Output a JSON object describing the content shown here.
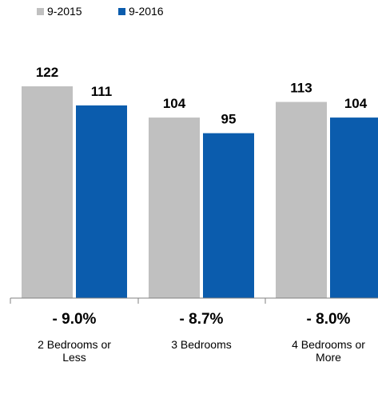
{
  "chart_data": {
    "type": "bar",
    "title": "",
    "xlabel": "",
    "ylabel": "",
    "ylim": [
      0,
      122
    ],
    "grid": false,
    "legend": "top-left",
    "categories": [
      [
        "2 Bedrooms or",
        "Less"
      ],
      [
        "3 Bedrooms"
      ],
      [
        "4 Bedrooms or",
        "More"
      ]
    ],
    "series": [
      {
        "name": "9-2015",
        "color": "#c0c0c0",
        "values": [
          122,
          104,
          113
        ]
      },
      {
        "name": "9-2016",
        "color": "#0b5cad",
        "values": [
          111,
          95,
          104
        ]
      }
    ],
    "changes": [
      "- 9.0%",
      "- 8.7%",
      "- 8.0%"
    ]
  }
}
